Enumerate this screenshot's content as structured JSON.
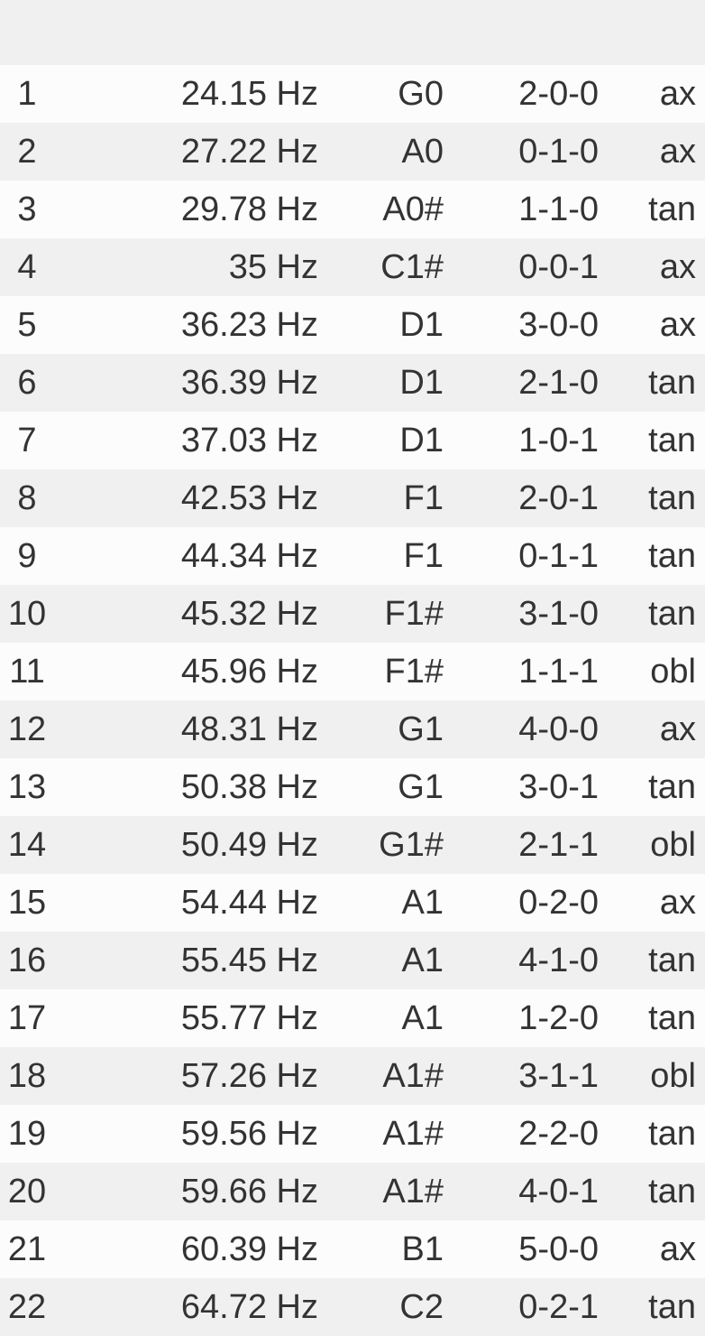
{
  "rows": [
    {
      "index": "1",
      "frequency": "24.15 Hz",
      "note": "G0",
      "mode": "2-0-0",
      "type": "ax"
    },
    {
      "index": "2",
      "frequency": "27.22 Hz",
      "note": "A0",
      "mode": "0-1-0",
      "type": "ax"
    },
    {
      "index": "3",
      "frequency": "29.78 Hz",
      "note": "A0#",
      "mode": "1-1-0",
      "type": "tan"
    },
    {
      "index": "4",
      "frequency": "35 Hz",
      "note": "C1#",
      "mode": "0-0-1",
      "type": "ax"
    },
    {
      "index": "5",
      "frequency": "36.23 Hz",
      "note": "D1",
      "mode": "3-0-0",
      "type": "ax"
    },
    {
      "index": "6",
      "frequency": "36.39 Hz",
      "note": "D1",
      "mode": "2-1-0",
      "type": "tan"
    },
    {
      "index": "7",
      "frequency": "37.03 Hz",
      "note": "D1",
      "mode": "1-0-1",
      "type": "tan"
    },
    {
      "index": "8",
      "frequency": "42.53 Hz",
      "note": "F1",
      "mode": "2-0-1",
      "type": "tan"
    },
    {
      "index": "9",
      "frequency": "44.34 Hz",
      "note": "F1",
      "mode": "0-1-1",
      "type": "tan"
    },
    {
      "index": "10",
      "frequency": "45.32 Hz",
      "note": "F1#",
      "mode": "3-1-0",
      "type": "tan"
    },
    {
      "index": "11",
      "frequency": "45.96 Hz",
      "note": "F1#",
      "mode": "1-1-1",
      "type": "obl"
    },
    {
      "index": "12",
      "frequency": "48.31 Hz",
      "note": "G1",
      "mode": "4-0-0",
      "type": "ax"
    },
    {
      "index": "13",
      "frequency": "50.38 Hz",
      "note": "G1",
      "mode": "3-0-1",
      "type": "tan"
    },
    {
      "index": "14",
      "frequency": "50.49 Hz",
      "note": "G1#",
      "mode": "2-1-1",
      "type": "obl"
    },
    {
      "index": "15",
      "frequency": "54.44 Hz",
      "note": "A1",
      "mode": "0-2-0",
      "type": "ax"
    },
    {
      "index": "16",
      "frequency": "55.45 Hz",
      "note": "A1",
      "mode": "4-1-0",
      "type": "tan"
    },
    {
      "index": "17",
      "frequency": "55.77 Hz",
      "note": "A1",
      "mode": "1-2-0",
      "type": "tan"
    },
    {
      "index": "18",
      "frequency": "57.26 Hz",
      "note": "A1#",
      "mode": "3-1-1",
      "type": "obl"
    },
    {
      "index": "19",
      "frequency": "59.56 Hz",
      "note": "A1#",
      "mode": "2-2-0",
      "type": "tan"
    },
    {
      "index": "20",
      "frequency": "59.66 Hz",
      "note": "A1#",
      "mode": "4-0-1",
      "type": "tan"
    },
    {
      "index": "21",
      "frequency": "60.39 Hz",
      "note": "B1",
      "mode": "5-0-0",
      "type": "ax"
    },
    {
      "index": "22",
      "frequency": "64.72 Hz",
      "note": "C2",
      "mode": "0-2-1",
      "type": "tan"
    }
  ]
}
